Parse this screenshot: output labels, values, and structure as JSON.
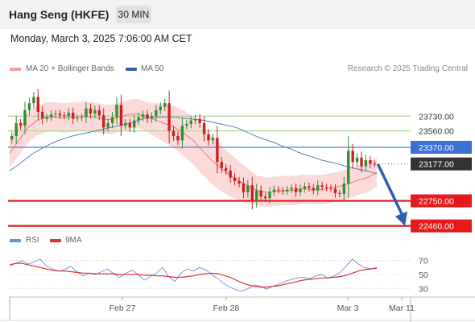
{
  "header": {
    "title": "Hang Seng (HKFE)",
    "timeframe": "30 MIN",
    "datetime": "Monday, March 3, 2025 7:06:00 AM CET"
  },
  "legend": {
    "ma_bb": "MA 20 + Bollinger Bands",
    "ma50": "MA 50",
    "research": "Research © 2025 Trading Central",
    "rsi": "RSI",
    "ma9": "9MA"
  },
  "colors": {
    "bullish": "#2f8f2f",
    "bearish": "#cc1f1f",
    "bollinger_fill": "#fbd3d3",
    "ma20": "#e37b7b",
    "ma50": "#5b7bbd",
    "resistance": "#b5d69a",
    "pivot": "#3b6fd6",
    "support": "#e61a1a",
    "current": "#333333",
    "rsi": "#6a8fd8",
    "rsi_ma": "#e03030",
    "arrow": "#2b5fb0"
  },
  "chart_data": [
    {
      "type": "candlestick",
      "title": "Hang Seng (HKFE)",
      "x_ticks": [
        "Feb 27",
        "Feb 28",
        "Mar 3",
        "Mar 11"
      ],
      "price_levels": [
        {
          "label": "23730.00",
          "value": 23730,
          "kind": "resistance"
        },
        {
          "label": "23560.00",
          "value": 23560,
          "kind": "resistance"
        },
        {
          "label": "23370.00",
          "value": 23370,
          "kind": "pivot"
        },
        {
          "label": "23177.00",
          "value": 23177,
          "kind": "current"
        },
        {
          "label": "22750.00",
          "value": 22750,
          "kind": "support"
        },
        {
          "label": "22460.00",
          "value": 22460,
          "kind": "support"
        }
      ],
      "closes": [
        23500,
        23650,
        23620,
        23800,
        23880,
        23950,
        23780,
        23700,
        23720,
        23750,
        23760,
        23740,
        23730,
        23770,
        23700,
        23710,
        23720,
        23820,
        23760,
        23800,
        23740,
        23600,
        23650,
        23720,
        23860,
        23620,
        23650,
        23600,
        23680,
        23720,
        23750,
        23700,
        23730,
        23800,
        23840,
        23880,
        23560,
        23500,
        23450,
        23620,
        23640,
        23680,
        23700,
        23650,
        23520,
        23450,
        23480,
        23200,
        23130,
        23100,
        23020,
        22980,
        22950,
        22850,
        22930,
        22750,
        22870,
        22800,
        22780,
        22850,
        22880,
        22870,
        22860,
        22880,
        22900,
        22850,
        22890,
        22920,
        22900,
        22870,
        22930,
        22910,
        22900,
        22890,
        22840,
        22830,
        22950,
        23330,
        23200,
        23250,
        23150,
        23220,
        23180,
        23177
      ],
      "ma50": [
        23100,
        23160,
        23230,
        23300,
        23350,
        23400,
        23440,
        23470,
        23500,
        23520,
        23540,
        23560,
        23580,
        23600,
        23620,
        23640,
        23660,
        23700,
        23710,
        23720,
        23720,
        23720,
        23710,
        23700,
        23690,
        23680,
        23660,
        23640,
        23620,
        23600,
        23560,
        23520,
        23480,
        23450,
        23420,
        23380,
        23350,
        23310,
        23280,
        23250,
        23220,
        23200,
        23180,
        23150,
        23130,
        23110,
        23090,
        23060
      ],
      "ma20": [
        23300,
        23450,
        23600,
        23680,
        23720,
        23720,
        23710,
        23720,
        23730,
        23720,
        23700,
        23690,
        23720,
        23750,
        23760,
        23720,
        23680,
        23640,
        23600,
        23530,
        23450,
        23330,
        23220,
        23130,
        23050,
        22980,
        22920,
        22870,
        22850,
        22860,
        22870,
        22870,
        22890,
        22880,
        22880,
        22900,
        22920,
        22950,
        22990,
        23020,
        23080
      ]
    },
    {
      "type": "line",
      "title": "RSI",
      "y_ticks": [
        70,
        50,
        30
      ],
      "ylim": [
        20,
        80
      ],
      "series": [
        {
          "name": "RSI",
          "values": [
            62,
            66,
            70,
            65,
            68,
            72,
            62,
            58,
            55,
            57,
            62,
            54,
            48,
            52,
            50,
            54,
            58,
            51,
            46,
            52,
            56,
            50,
            42,
            47,
            52,
            60,
            47,
            40,
            52,
            58,
            55,
            60,
            57,
            50,
            44,
            37,
            32,
            28,
            26,
            30,
            35,
            33,
            29,
            33,
            36,
            40,
            43,
            45,
            46,
            44,
            48,
            50,
            45,
            48,
            53,
            62,
            72,
            65,
            60,
            58,
            60
          ]
        },
        {
          "name": "9MA",
          "values": [
            64,
            66,
            66,
            64,
            62,
            60,
            58,
            56,
            55,
            55,
            54,
            53,
            52,
            52,
            51,
            51,
            51,
            51,
            50,
            50,
            50,
            50,
            49,
            49,
            48,
            48,
            47,
            46,
            46,
            47,
            48,
            50,
            51,
            52,
            51,
            49,
            46,
            42,
            38,
            35,
            33,
            32,
            32,
            33,
            34,
            36,
            38,
            40,
            42,
            43,
            44,
            45,
            45,
            46,
            47,
            49,
            52,
            55,
            57,
            58,
            59
          ]
        }
      ]
    }
  ]
}
